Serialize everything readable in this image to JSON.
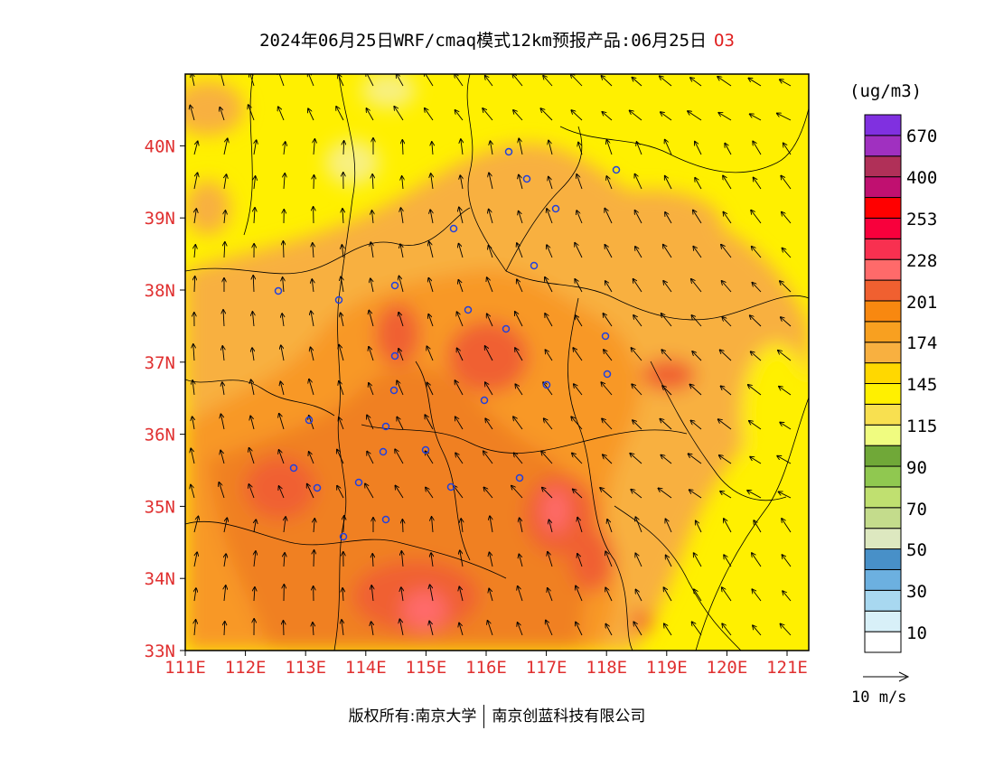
{
  "title": {
    "text": "2024年06月25日WRF/cmaq模式12km预报产品:06月25日",
    "species": "O3"
  },
  "map": {
    "lat_ticks": [
      "33N",
      "34N",
      "35N",
      "36N",
      "37N",
      "38N",
      "39N",
      "40N"
    ],
    "lon_ticks": [
      "111E",
      "112E",
      "113E",
      "114E",
      "115E",
      "116E",
      "117E",
      "118E",
      "119E",
      "120E",
      "121E"
    ],
    "tick_color": "#e03030"
  },
  "colorbar": {
    "units": "(ug/m3)",
    "colors": [
      "#ffffff",
      "#d8f0f8",
      "#a8d8f0",
      "#6cb0e0",
      "#4890c8",
      "#dde8c0",
      "#c4dc8c",
      "#c0e070",
      "#90c850",
      "#70a838",
      "#f0fc80",
      "#f8e050",
      "#fff000",
      "#ffd800",
      "#f8b040",
      "#f8a020",
      "#f88810",
      "#f06030",
      "#ff6a6a",
      "#f83050",
      "#f8003c",
      "#ff0000",
      "#c01070",
      "#b03058",
      "#a030c0",
      "#8030e0"
    ],
    "labels": [
      "10",
      "30",
      "50",
      "70",
      "90",
      "115",
      "145",
      "174",
      "201",
      "228",
      "253",
      "400",
      "670"
    ]
  },
  "wind_legend": {
    "label": "10 m/s"
  },
  "footer": {
    "copyright": "版权所有:南京大学",
    "company": "南京创蓝科技有限公司"
  }
}
